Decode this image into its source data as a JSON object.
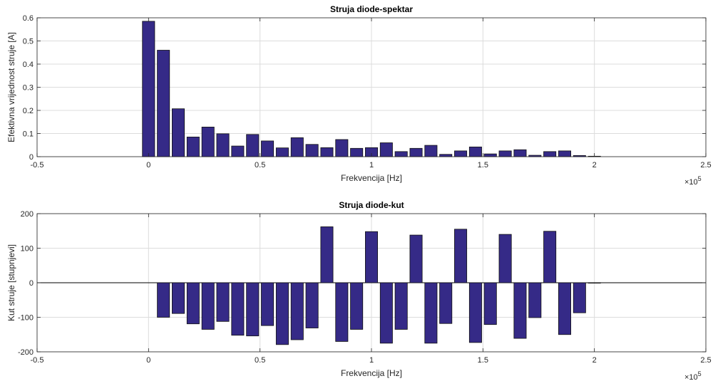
{
  "chart_data": [
    {
      "type": "bar",
      "title": "Struja diode-spektar",
      "xlabel": "Frekvencija [Hz]",
      "ylabel": "Efektivna vrijednost struje [A]",
      "x_exponent": "×10",
      "x_exponent_power": "5",
      "xlim": [
        -0.5,
        2.5
      ],
      "ylim": [
        0,
        0.6
      ],
      "xticks": [
        "-0.5",
        "0",
        "0.5",
        "1",
        "1.5",
        "2",
        "2.5"
      ],
      "yticks": [
        "0",
        "0.1",
        "0.2",
        "0.3",
        "0.4",
        "0.5",
        "0.6"
      ],
      "grid": true,
      "bar_color": "#352A87",
      "x": [
        0,
        0.0667,
        0.1333,
        0.2,
        0.2667,
        0.3333,
        0.4,
        0.4667,
        0.5333,
        0.6,
        0.6667,
        0.7333,
        0.8,
        0.8667,
        0.9333,
        1.0,
        1.0667,
        1.1333,
        1.2,
        1.2667,
        1.3333,
        1.4,
        1.4667,
        1.5333,
        1.6,
        1.6667,
        1.7333,
        1.8,
        1.8667,
        1.9333,
        2.0
      ],
      "values": [
        0.585,
        0.46,
        0.207,
        0.085,
        0.128,
        0.099,
        0.046,
        0.096,
        0.068,
        0.038,
        0.082,
        0.053,
        0.039,
        0.074,
        0.036,
        0.039,
        0.06,
        0.022,
        0.036,
        0.049,
        0.01,
        0.025,
        0.042,
        0.012,
        0.025,
        0.03,
        0.006,
        0.022,
        0.025,
        0.005,
        0.002
      ]
    },
    {
      "type": "bar",
      "title": "Struja diode-kut",
      "xlabel": "Frekvencija [Hz]",
      "ylabel": "Kut struje [stupnjevi]",
      "x_exponent": "×10",
      "x_exponent_power": "5",
      "xlim": [
        -0.5,
        2.5
      ],
      "ylim": [
        -200,
        200
      ],
      "xticks": [
        "-0.5",
        "0",
        "0.5",
        "1",
        "1.5",
        "2",
        "2.5"
      ],
      "yticks": [
        "-200",
        "-100",
        "0",
        "100",
        "200"
      ],
      "grid": true,
      "bar_color": "#352A87",
      "x": [
        0.0667,
        0.1333,
        0.2,
        0.2667,
        0.3333,
        0.4,
        0.4667,
        0.5333,
        0.6,
        0.6667,
        0.7333,
        0.8,
        0.8667,
        0.9333,
        1.0,
        1.0667,
        1.1333,
        1.2,
        1.2667,
        1.3333,
        1.4,
        1.4667,
        1.5333,
        1.6,
        1.6667,
        1.7333,
        1.8,
        1.8667,
        1.9333,
        2.0
      ],
      "values": [
        -100,
        -89,
        -119,
        -135,
        -112,
        -152,
        -154,
        -124,
        -179,
        -165,
        -131,
        162,
        -170,
        -135,
        148,
        -175,
        -135,
        138,
        -175,
        -118,
        155,
        -173,
        -121,
        140,
        -161,
        -101,
        149,
        -150,
        -87,
        0
      ]
    }
  ]
}
